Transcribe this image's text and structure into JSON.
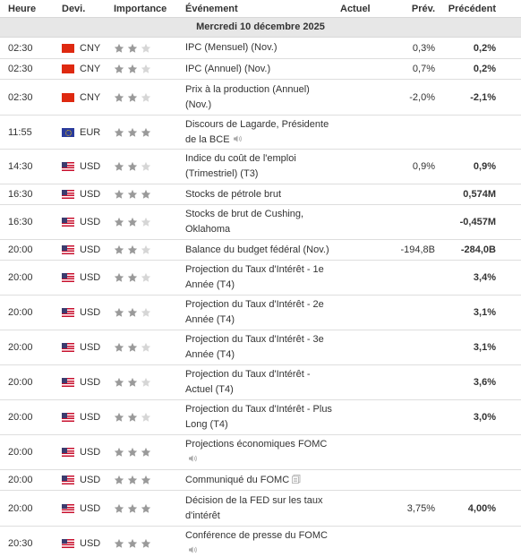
{
  "header": {
    "time": "Heure",
    "currency": "Devi.",
    "importance": "Importance",
    "event": "Événement",
    "actual": "Actuel",
    "forecast": "Prév.",
    "previous": "Précédent"
  },
  "date_label": "Mercredi 10 décembre 2025",
  "colors": {
    "star_filled": "#9a9a9a",
    "star_empty": "#d6d6d6",
    "icon": "#aaaaaa"
  },
  "rows": [
    {
      "time": "02:30",
      "flag": "cn",
      "currency": "CNY",
      "stars": 2,
      "event": "IPC (Mensuel) (Nov.)",
      "icon": "",
      "actual": "",
      "forecast": "0,3%",
      "previous": "0,2%",
      "h": 24
    },
    {
      "time": "02:30",
      "flag": "cn",
      "currency": "CNY",
      "stars": 2,
      "event": "IPC (Annuel) (Nov.)",
      "icon": "",
      "actual": "",
      "forecast": "0,7%",
      "previous": "0,2%",
      "h": 23
    },
    {
      "time": "02:30",
      "flag": "cn",
      "currency": "CNY",
      "stars": 2,
      "event": "Prix à la production (Annuel) (Nov.)",
      "icon": "",
      "actual": "",
      "forecast": "-2,0%",
      "previous": "-2,1%",
      "h": 40
    },
    {
      "time": "11:55",
      "flag": "eu",
      "currency": "EUR",
      "stars": 3,
      "event": "Discours de Lagarde, Présidente de la BCE",
      "icon": "speaker-icon",
      "actual": "",
      "forecast": "",
      "previous": "",
      "h": 38
    },
    {
      "time": "14:30",
      "flag": "us",
      "currency": "USD",
      "stars": 2,
      "event": "Indice du coût de l'emploi (Trimestriel) (T3)",
      "icon": "",
      "actual": "",
      "forecast": "0,9%",
      "previous": "0,9%",
      "h": 39
    },
    {
      "time": "16:30",
      "flag": "us",
      "currency": "USD",
      "stars": 3,
      "event": "Stocks de pétrole brut",
      "icon": "",
      "actual": "",
      "forecast": "",
      "previous": "0,574M",
      "h": 23
    },
    {
      "time": "16:30",
      "flag": "us",
      "currency": "USD",
      "stars": 2,
      "event": "Stocks de brut de Cushing, Oklahoma",
      "icon": "",
      "actual": "",
      "forecast": "",
      "previous": "-0,457M",
      "h": 39
    },
    {
      "time": "20:00",
      "flag": "us",
      "currency": "USD",
      "stars": 2,
      "event": "Balance du budget fédéral (Nov.)",
      "icon": "",
      "actual": "",
      "forecast": "-194,8B",
      "previous": "-284,0B",
      "h": 23
    },
    {
      "time": "20:00",
      "flag": "us",
      "currency": "USD",
      "stars": 2,
      "event": "Projection du Taux d'Intérêt - 1e Année (T4)",
      "icon": "",
      "actual": "",
      "forecast": "",
      "previous": "3,4%",
      "h": 39
    },
    {
      "time": "20:00",
      "flag": "us",
      "currency": "USD",
      "stars": 2,
      "event": "Projection du Taux d'Intérêt - 2e Année (T4)",
      "icon": "",
      "actual": "",
      "forecast": "",
      "previous": "3,1%",
      "h": 39
    },
    {
      "time": "20:00",
      "flag": "us",
      "currency": "USD",
      "stars": 2,
      "event": "Projection du Taux d'Intérêt - 3e Année (T4)",
      "icon": "",
      "actual": "",
      "forecast": "",
      "previous": "3,1%",
      "h": 39
    },
    {
      "time": "20:00",
      "flag": "us",
      "currency": "USD",
      "stars": 2,
      "event": "Projection du Taux d'Intérêt - Actuel (T4)",
      "icon": "",
      "actual": "",
      "forecast": "",
      "previous": "3,6%",
      "h": 39
    },
    {
      "time": "20:00",
      "flag": "us",
      "currency": "USD",
      "stars": 2,
      "event": "Projection du Taux d'Intérêt - Plus Long (T4)",
      "icon": "",
      "actual": "",
      "forecast": "",
      "previous": "3,0%",
      "h": 39
    },
    {
      "time": "20:00",
      "flag": "us",
      "currency": "USD",
      "stars": 3,
      "event": "Projections économiques FOMC",
      "icon": "speaker-icon",
      "actual": "",
      "forecast": "",
      "previous": "",
      "h": 39
    },
    {
      "time": "20:00",
      "flag": "us",
      "currency": "USD",
      "stars": 3,
      "event": "Communiqué du FOMC",
      "icon": "document-icon",
      "actual": "",
      "forecast": "",
      "previous": "",
      "h": 23
    },
    {
      "time": "20:00",
      "flag": "us",
      "currency": "USD",
      "stars": 3,
      "event": "Décision de la FED sur les taux d'intérêt",
      "icon": "",
      "actual": "",
      "forecast": "3,75%",
      "previous": "4,00%",
      "h": 40
    },
    {
      "time": "20:30",
      "flag": "us",
      "currency": "USD",
      "stars": 3,
      "event": "Conférence de presse du FOMC",
      "icon": "speaker-icon",
      "actual": "",
      "forecast": "",
      "previous": "",
      "h": 38
    }
  ]
}
